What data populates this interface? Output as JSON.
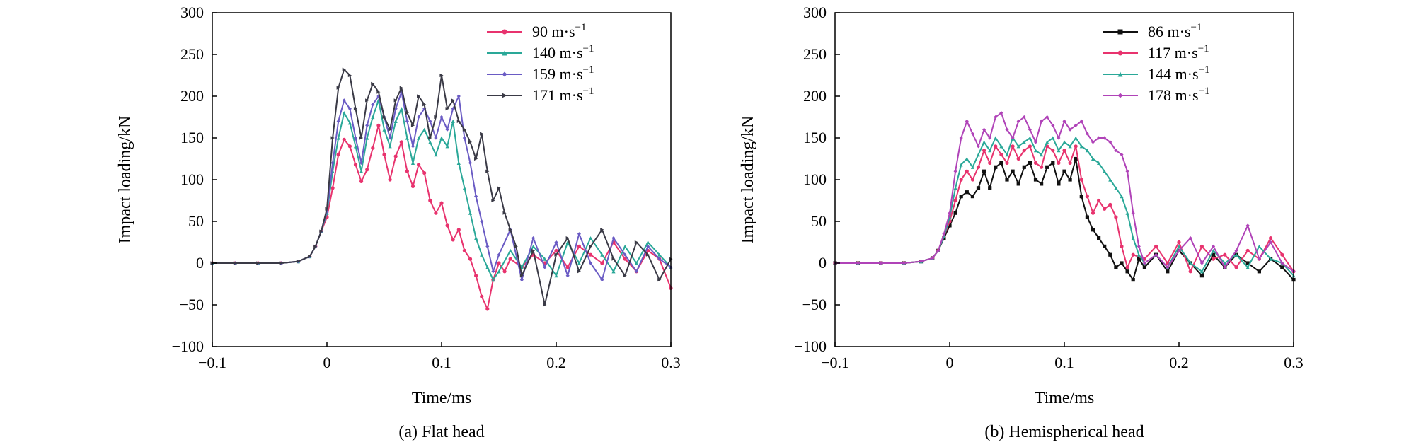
{
  "chart_data": [
    {
      "type": "line",
      "caption": "(a) Flat head",
      "xlabel": "Time/ms",
      "ylabel": "Impact loading/kN",
      "xlim": [
        -0.1,
        0.3
      ],
      "ylim": [
        -100,
        300
      ],
      "xticks": [
        "−0.1",
        "0",
        "0.1",
        "0.2",
        "0.3"
      ],
      "xtick_values": [
        -0.1,
        0,
        0.1,
        0.2,
        0.3
      ],
      "yticks": [
        "−100",
        "−50",
        "0",
        "50",
        "100",
        "150",
        "200",
        "250",
        "300"
      ],
      "ytick_values": [
        -100,
        -50,
        0,
        50,
        100,
        150,
        200,
        250,
        300
      ],
      "legend_position": "top-right",
      "series": [
        {
          "name": "90 m·s−1",
          "name_base": "90 m·s",
          "name_sup": "−1",
          "color": "#e8336e",
          "marker": "circle",
          "x": [
            -0.1,
            -0.08,
            -0.06,
            -0.04,
            -0.025,
            -0.015,
            -0.01,
            -0.005,
            0.0,
            0.005,
            0.01,
            0.015,
            0.02,
            0.025,
            0.03,
            0.035,
            0.04,
            0.045,
            0.05,
            0.055,
            0.06,
            0.065,
            0.07,
            0.075,
            0.08,
            0.085,
            0.09,
            0.095,
            0.1,
            0.105,
            0.11,
            0.115,
            0.12,
            0.125,
            0.13,
            0.135,
            0.14,
            0.145,
            0.15,
            0.155,
            0.16,
            0.17,
            0.18,
            0.19,
            0.2,
            0.21,
            0.22,
            0.23,
            0.24,
            0.25,
            0.26,
            0.27,
            0.28,
            0.29,
            0.3
          ],
          "y": [
            0,
            0,
            0,
            0,
            2,
            8,
            20,
            38,
            55,
            90,
            130,
            148,
            140,
            118,
            98,
            112,
            138,
            165,
            130,
            100,
            128,
            145,
            110,
            92,
            118,
            108,
            75,
            60,
            72,
            45,
            28,
            40,
            15,
            5,
            -15,
            -40,
            -55,
            -20,
            0,
            -10,
            5,
            -5,
            10,
            0,
            15,
            -5,
            20,
            10,
            0,
            25,
            5,
            -10,
            15,
            5,
            -30
          ]
        },
        {
          "name": "140 m·s−1",
          "name_base": "140 m·s",
          "name_sup": "−1",
          "color": "#2aa898",
          "marker": "triangle",
          "x": [
            -0.1,
            -0.08,
            -0.06,
            -0.04,
            -0.025,
            -0.015,
            -0.01,
            -0.005,
            0.0,
            0.005,
            0.01,
            0.015,
            0.02,
            0.025,
            0.03,
            0.035,
            0.04,
            0.045,
            0.05,
            0.055,
            0.06,
            0.065,
            0.07,
            0.075,
            0.08,
            0.085,
            0.09,
            0.095,
            0.1,
            0.105,
            0.11,
            0.115,
            0.12,
            0.125,
            0.13,
            0.135,
            0.14,
            0.145,
            0.15,
            0.16,
            0.17,
            0.18,
            0.19,
            0.2,
            0.21,
            0.22,
            0.23,
            0.24,
            0.25,
            0.26,
            0.27,
            0.28,
            0.29,
            0.3
          ],
          "y": [
            0,
            0,
            0,
            0,
            2,
            8,
            20,
            38,
            60,
            110,
            150,
            180,
            168,
            140,
            110,
            150,
            175,
            195,
            160,
            140,
            170,
            185,
            150,
            120,
            150,
            160,
            145,
            130,
            150,
            140,
            170,
            120,
            90,
            60,
            30,
            10,
            -5,
            -20,
            -10,
            15,
            -5,
            20,
            5,
            -15,
            25,
            0,
            30,
            10,
            -10,
            20,
            0,
            25,
            10,
            -5
          ]
        },
        {
          "name": "159 m·s−1",
          "name_base": "159 m·s",
          "name_sup": "−1",
          "color": "#6a5bc4",
          "marker": "diamond",
          "x": [
            -0.1,
            -0.08,
            -0.06,
            -0.04,
            -0.025,
            -0.015,
            -0.01,
            -0.005,
            0.0,
            0.005,
            0.01,
            0.015,
            0.02,
            0.025,
            0.03,
            0.035,
            0.04,
            0.045,
            0.05,
            0.055,
            0.06,
            0.065,
            0.07,
            0.075,
            0.08,
            0.085,
            0.09,
            0.095,
            0.1,
            0.105,
            0.11,
            0.115,
            0.12,
            0.125,
            0.13,
            0.135,
            0.14,
            0.145,
            0.15,
            0.16,
            0.17,
            0.18,
            0.19,
            0.2,
            0.21,
            0.22,
            0.23,
            0.24,
            0.25,
            0.26,
            0.27,
            0.28,
            0.29,
            0.3
          ],
          "y": [
            0,
            0,
            0,
            0,
            2,
            8,
            20,
            38,
            62,
            120,
            170,
            195,
            185,
            150,
            120,
            165,
            190,
            200,
            175,
            150,
            185,
            205,
            170,
            140,
            175,
            185,
            170,
            150,
            175,
            160,
            185,
            200,
            150,
            120,
            80,
            50,
            20,
            -10,
            10,
            40,
            -20,
            30,
            -5,
            25,
            -15,
            35,
            0,
            -20,
            30,
            10,
            -10,
            20,
            5,
            -5
          ]
        },
        {
          "name": "171 m·s−1",
          "name_base": "171 m·s",
          "name_sup": "−1",
          "color": "#3a3a46",
          "marker": "triangle-right",
          "x": [
            -0.1,
            -0.08,
            -0.06,
            -0.04,
            -0.025,
            -0.015,
            -0.01,
            -0.005,
            0.0,
            0.005,
            0.01,
            0.015,
            0.02,
            0.025,
            0.03,
            0.035,
            0.04,
            0.045,
            0.05,
            0.055,
            0.06,
            0.065,
            0.07,
            0.075,
            0.08,
            0.085,
            0.09,
            0.095,
            0.1,
            0.105,
            0.11,
            0.115,
            0.12,
            0.125,
            0.13,
            0.135,
            0.14,
            0.145,
            0.15,
            0.155,
            0.16,
            0.165,
            0.17,
            0.18,
            0.19,
            0.2,
            0.21,
            0.22,
            0.23,
            0.24,
            0.25,
            0.26,
            0.27,
            0.28,
            0.29,
            0.3
          ],
          "y": [
            0,
            0,
            0,
            0,
            2,
            8,
            20,
            38,
            65,
            150,
            210,
            232,
            225,
            185,
            150,
            195,
            215,
            205,
            175,
            160,
            195,
            210,
            180,
            165,
            200,
            190,
            150,
            175,
            225,
            185,
            195,
            170,
            160,
            145,
            125,
            155,
            110,
            75,
            90,
            60,
            40,
            20,
            -15,
            15,
            -50,
            10,
            30,
            -10,
            20,
            40,
            5,
            -15,
            25,
            10,
            -20,
            5
          ]
        }
      ]
    },
    {
      "type": "line",
      "caption": "(b) Hemispherical head",
      "xlabel": "Time/ms",
      "ylabel": "Impact loading/kN",
      "xlim": [
        -0.1,
        0.3
      ],
      "ylim": [
        -100,
        300
      ],
      "xticks": [
        "−0.1",
        "0",
        "0.1",
        "0.2",
        "0.3"
      ],
      "xtick_values": [
        -0.1,
        0,
        0.1,
        0.2,
        0.3
      ],
      "yticks": [
        "−100",
        "−50",
        "0",
        "50",
        "100",
        "150",
        "200",
        "250",
        "300"
      ],
      "ytick_values": [
        -100,
        -50,
        0,
        50,
        100,
        150,
        200,
        250,
        300
      ],
      "legend_position": "top-right",
      "series": [
        {
          "name": "86 m·s−1",
          "name_base": "86 m·s",
          "name_sup": "−1",
          "color": "#111111",
          "marker": "square",
          "x": [
            -0.1,
            -0.08,
            -0.06,
            -0.04,
            -0.025,
            -0.015,
            -0.01,
            -0.005,
            0.0,
            0.005,
            0.01,
            0.015,
            0.02,
            0.025,
            0.03,
            0.035,
            0.04,
            0.045,
            0.05,
            0.055,
            0.06,
            0.065,
            0.07,
            0.075,
            0.08,
            0.085,
            0.09,
            0.095,
            0.1,
            0.105,
            0.11,
            0.115,
            0.12,
            0.125,
            0.13,
            0.135,
            0.14,
            0.145,
            0.15,
            0.155,
            0.16,
            0.165,
            0.17,
            0.18,
            0.19,
            0.2,
            0.21,
            0.22,
            0.23,
            0.24,
            0.25,
            0.26,
            0.27,
            0.28,
            0.29,
            0.3
          ],
          "y": [
            0,
            0,
            0,
            0,
            2,
            6,
            15,
            30,
            45,
            60,
            80,
            85,
            80,
            90,
            110,
            90,
            115,
            120,
            100,
            110,
            95,
            115,
            120,
            100,
            95,
            115,
            120,
            95,
            110,
            100,
            125,
            80,
            55,
            40,
            30,
            20,
            10,
            -5,
            0,
            -10,
            -20,
            5,
            -5,
            10,
            -10,
            15,
            0,
            -15,
            10,
            -5,
            10,
            0,
            -10,
            5,
            -5,
            -20
          ]
        },
        {
          "name": "117 m·s−1",
          "name_base": "117 m·s",
          "name_sup": "−1",
          "color": "#e8336e",
          "marker": "circle",
          "x": [
            -0.1,
            -0.08,
            -0.06,
            -0.04,
            -0.025,
            -0.015,
            -0.01,
            -0.005,
            0.0,
            0.005,
            0.01,
            0.015,
            0.02,
            0.025,
            0.03,
            0.035,
            0.04,
            0.045,
            0.05,
            0.055,
            0.06,
            0.065,
            0.07,
            0.075,
            0.08,
            0.085,
            0.09,
            0.095,
            0.1,
            0.105,
            0.11,
            0.115,
            0.12,
            0.125,
            0.13,
            0.135,
            0.14,
            0.145,
            0.15,
            0.155,
            0.16,
            0.17,
            0.18,
            0.19,
            0.2,
            0.21,
            0.22,
            0.23,
            0.24,
            0.25,
            0.26,
            0.27,
            0.28,
            0.29,
            0.3
          ],
          "y": [
            0,
            0,
            0,
            0,
            2,
            6,
            15,
            32,
            50,
            75,
            100,
            110,
            100,
            115,
            135,
            120,
            140,
            130,
            120,
            140,
            125,
            135,
            140,
            120,
            115,
            140,
            135,
            120,
            135,
            120,
            140,
            100,
            80,
            60,
            75,
            65,
            70,
            55,
            20,
            -5,
            10,
            5,
            20,
            0,
            25,
            -10,
            20,
            5,
            10,
            -5,
            15,
            5,
            30,
            10,
            -10
          ]
        },
        {
          "name": "144 m·s−1",
          "name_base": "144 m·s",
          "name_sup": "−1",
          "color": "#2aa898",
          "marker": "triangle",
          "x": [
            -0.1,
            -0.08,
            -0.06,
            -0.04,
            -0.025,
            -0.015,
            -0.01,
            -0.005,
            0.0,
            0.005,
            0.01,
            0.015,
            0.02,
            0.025,
            0.03,
            0.035,
            0.04,
            0.045,
            0.05,
            0.055,
            0.06,
            0.065,
            0.07,
            0.075,
            0.08,
            0.085,
            0.09,
            0.095,
            0.1,
            0.105,
            0.11,
            0.115,
            0.12,
            0.125,
            0.13,
            0.135,
            0.14,
            0.145,
            0.15,
            0.155,
            0.16,
            0.165,
            0.17,
            0.18,
            0.19,
            0.2,
            0.21,
            0.22,
            0.23,
            0.24,
            0.25,
            0.26,
            0.27,
            0.28,
            0.29,
            0.3
          ],
          "y": [
            0,
            0,
            0,
            0,
            2,
            6,
            15,
            32,
            55,
            90,
            118,
            125,
            115,
            130,
            145,
            135,
            150,
            140,
            130,
            150,
            140,
            145,
            150,
            135,
            130,
            145,
            150,
            135,
            145,
            140,
            150,
            140,
            135,
            125,
            120,
            110,
            100,
            90,
            80,
            60,
            30,
            10,
            0,
            10,
            -5,
            20,
            0,
            -10,
            15,
            0,
            10,
            -5,
            20,
            5,
            0,
            -15
          ]
        },
        {
          "name": "178 m·s−1",
          "name_base": "178 m·s",
          "name_sup": "−1",
          "color": "#b043b8",
          "marker": "diamond",
          "x": [
            -0.1,
            -0.08,
            -0.06,
            -0.04,
            -0.025,
            -0.015,
            -0.01,
            -0.005,
            0.0,
            0.005,
            0.01,
            0.015,
            0.02,
            0.025,
            0.03,
            0.035,
            0.04,
            0.045,
            0.05,
            0.055,
            0.06,
            0.065,
            0.07,
            0.075,
            0.08,
            0.085,
            0.09,
            0.095,
            0.1,
            0.105,
            0.11,
            0.115,
            0.12,
            0.125,
            0.13,
            0.135,
            0.14,
            0.145,
            0.15,
            0.155,
            0.16,
            0.165,
            0.17,
            0.18,
            0.19,
            0.2,
            0.21,
            0.22,
            0.23,
            0.24,
            0.25,
            0.26,
            0.27,
            0.28,
            0.29,
            0.3
          ],
          "y": [
            0,
            0,
            0,
            0,
            2,
            6,
            15,
            35,
            60,
            110,
            150,
            170,
            155,
            140,
            160,
            150,
            175,
            180,
            160,
            150,
            170,
            175,
            160,
            145,
            170,
            175,
            165,
            150,
            170,
            160,
            165,
            170,
            155,
            145,
            150,
            150,
            145,
            135,
            130,
            110,
            60,
            20,
            0,
            10,
            -5,
            15,
            30,
            0,
            20,
            -5,
            15,
            45,
            5,
            25,
            0,
            -10
          ]
        }
      ]
    }
  ]
}
